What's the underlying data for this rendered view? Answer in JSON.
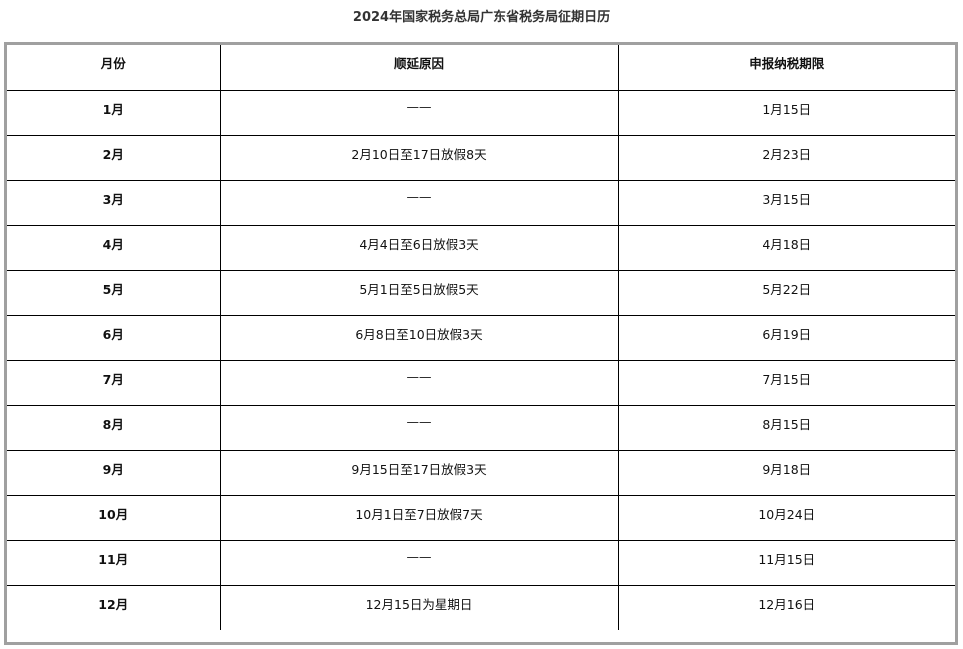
{
  "title": "2024年国家税务总局广东省税务局征期日历",
  "headers": [
    "月份",
    "顺延原因",
    "申报纳税期限"
  ],
  "rows": [
    {
      "month": "1月",
      "reason": "——",
      "deadline": "1月15日"
    },
    {
      "month": "2月",
      "reason": "2月10日至17日放假8天",
      "deadline": "2月23日"
    },
    {
      "month": "3月",
      "reason": "——",
      "deadline": "3月15日"
    },
    {
      "month": "4月",
      "reason": "4月4日至6日放假3天",
      "deadline": "4月18日"
    },
    {
      "month": "5月",
      "reason": "5月1日至5日放假5天",
      "deadline": "5月22日"
    },
    {
      "month": "6月",
      "reason": "6月8日至10日放假3天",
      "deadline": "6月19日"
    },
    {
      "month": "7月",
      "reason": "——",
      "deadline": "7月15日"
    },
    {
      "month": "8月",
      "reason": "——",
      "deadline": "8月15日"
    },
    {
      "month": "9月",
      "reason": "9月15日至17日放假3天",
      "deadline": "9月18日"
    },
    {
      "month": "10月",
      "reason": "10月1日至7日放假7天",
      "deadline": "10月24日"
    },
    {
      "month": "11月",
      "reason": "——",
      "deadline": "11月15日"
    },
    {
      "month": "12月",
      "reason": "12月15日为星期日",
      "deadline": "12月16日"
    }
  ]
}
